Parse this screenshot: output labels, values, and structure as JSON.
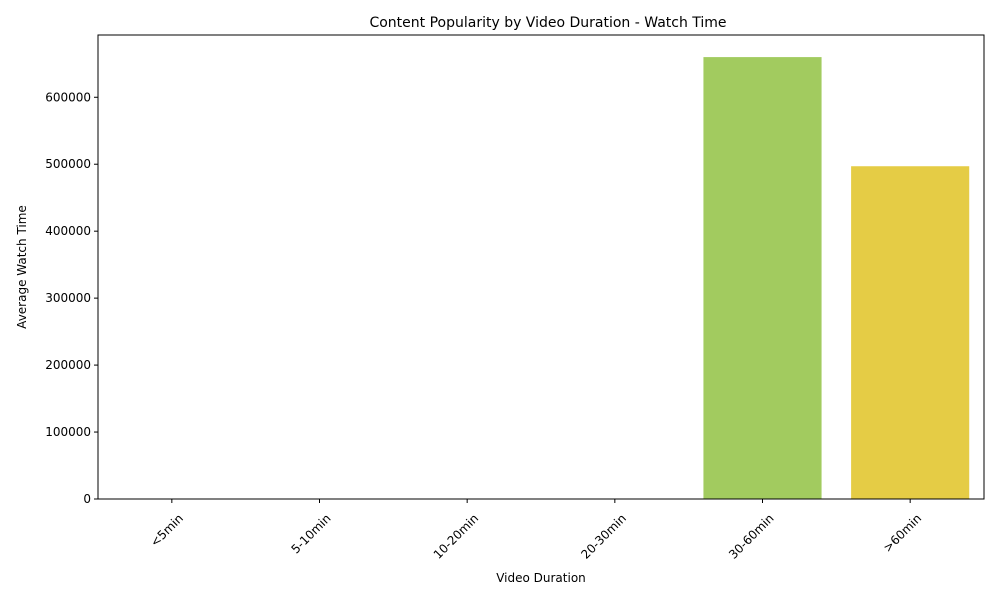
{
  "chart_data": {
    "type": "bar",
    "title": "Content Popularity by Video Duration - Watch Time",
    "xlabel": "Video Duration",
    "ylabel": "Average Watch Time",
    "categories": [
      "<5min",
      "5-10min",
      "10-20min",
      "20-30min",
      "30-60min",
      ">60min"
    ],
    "values": [
      0,
      0,
      0,
      0,
      660000,
      497000
    ],
    "colors": [
      "#440154",
      "#3b528b",
      "#21918c",
      "#5ec962",
      "#a2cb5f",
      "#e5cc45"
    ],
    "ylim": [
      0,
      693000
    ],
    "yticks": [
      0,
      100000,
      200000,
      300000,
      400000,
      500000,
      600000
    ],
    "grid": false,
    "legend": "none"
  }
}
